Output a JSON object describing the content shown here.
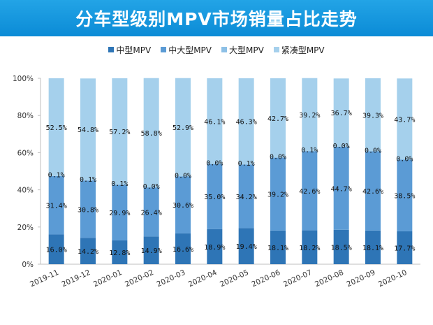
{
  "chart_data": {
    "type": "bar",
    "stacked": true,
    "title": "分车型级别MPV市场销量占比走势",
    "categories": [
      "2019-11",
      "2019-12",
      "2020-01",
      "2020-02",
      "2020-03",
      "2020-04",
      "2020-05",
      "2020-06",
      "2020-07",
      "2020-08",
      "2020-09",
      "2020-10"
    ],
    "series": [
      {
        "name": "中型MPV",
        "color": "#2e75b6",
        "values": [
          16.0,
          14.2,
          12.8,
          14.9,
          16.6,
          18.9,
          19.4,
          18.1,
          18.2,
          18.5,
          18.1,
          17.7
        ]
      },
      {
        "name": "中大型MPV",
        "color": "#5b9bd5",
        "values": [
          31.4,
          30.8,
          29.9,
          26.4,
          30.6,
          35.0,
          34.2,
          39.2,
          42.6,
          44.7,
          42.6,
          38.5
        ]
      },
      {
        "name": "大型MPV",
        "color": "#8dc0e6",
        "values": [
          0.1,
          0.1,
          0.1,
          0.0,
          0.0,
          0.0,
          0.1,
          0.0,
          0.1,
          0.0,
          0.0,
          0.0
        ]
      },
      {
        "name": "紧凑型MPV",
        "color": "#a5d0ec",
        "values": [
          52.5,
          54.8,
          57.2,
          58.8,
          52.9,
          46.1,
          46.3,
          42.7,
          39.2,
          36.7,
          39.3,
          43.7
        ]
      }
    ],
    "yticks": [
      "0%",
      "20%",
      "40%",
      "60%",
      "80%",
      "100%"
    ],
    "ylim": [
      0,
      100
    ],
    "legend": "top"
  }
}
